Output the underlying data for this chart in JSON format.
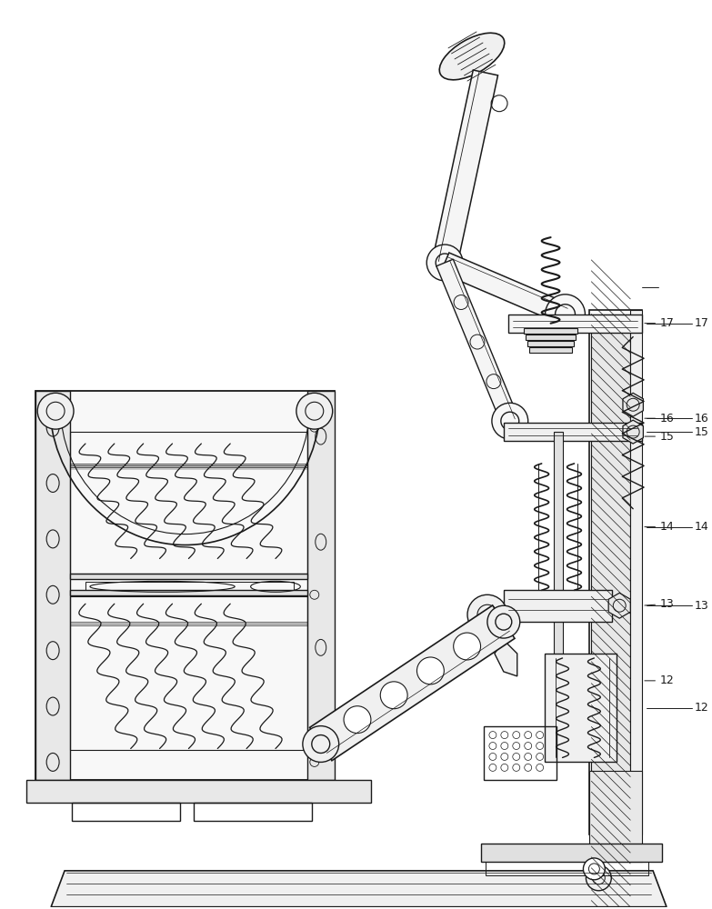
{
  "bg_color": "#ffffff",
  "line_color": "#1a1a1a",
  "lw": 1.0,
  "figsize": [
    7.83,
    10.0
  ],
  "dpi": 100
}
